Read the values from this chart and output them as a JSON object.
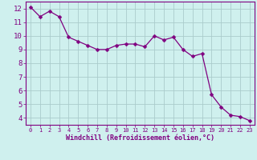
{
  "x": [
    0,
    1,
    2,
    3,
    4,
    5,
    6,
    7,
    8,
    9,
    10,
    11,
    12,
    13,
    14,
    15,
    16,
    17,
    18,
    19,
    20,
    21,
    22,
    23
  ],
  "y": [
    12.1,
    11.4,
    11.8,
    11.4,
    9.9,
    9.6,
    9.3,
    9.0,
    9.0,
    9.3,
    9.4,
    9.4,
    9.2,
    10.0,
    9.7,
    9.9,
    9.0,
    8.5,
    8.7,
    5.7,
    4.8,
    4.2,
    4.1,
    3.8
  ],
  "line_color": "#800080",
  "marker": "D",
  "marker_size": 2.5,
  "bg_color": "#cff0ee",
  "grid_color": "#aacccc",
  "xlabel": "Windchill (Refroidissement éolien,°C)",
  "xlim": [
    -0.5,
    23.5
  ],
  "ylim": [
    3.5,
    12.5
  ],
  "yticks": [
    4,
    5,
    6,
    7,
    8,
    9,
    10,
    11,
    12
  ],
  "xticks": [
    0,
    1,
    2,
    3,
    4,
    5,
    6,
    7,
    8,
    9,
    10,
    11,
    12,
    13,
    14,
    15,
    16,
    17,
    18,
    19,
    20,
    21,
    22,
    23
  ],
  "line_color_hex": "#800080",
  "tick_color": "#800080",
  "spine_color": "#800080",
  "xlabel_fontsize": 6.0,
  "ytick_fontsize": 6.5,
  "xtick_fontsize": 5.0
}
